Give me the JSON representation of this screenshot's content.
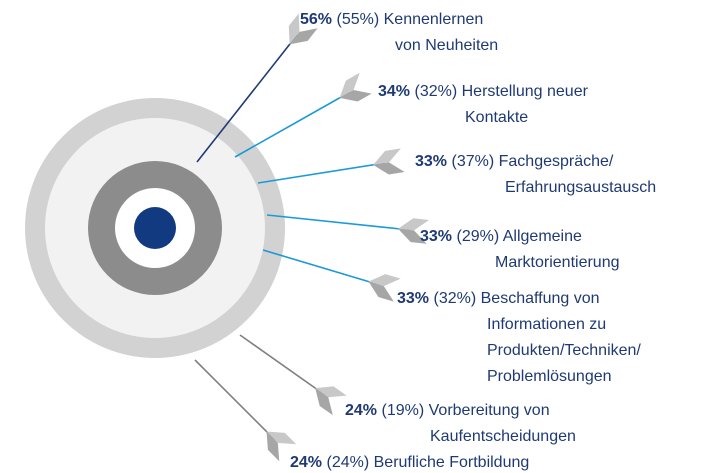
{
  "items": [
    {
      "current": "56%",
      "previous": "(55%)",
      "lines": [
        "Kennenlernen",
        "von Neuheiten"
      ]
    },
    {
      "current": "34%",
      "previous": "(32%)",
      "lines": [
        "Herstellung neuer",
        "Kontakte"
      ]
    },
    {
      "current": "33%",
      "previous": "(37%)",
      "lines": [
        "Fachgespräche/",
        "Erfahrungsaustausch"
      ]
    },
    {
      "current": "33%",
      "previous": "(29%)",
      "lines": [
        "Allgemeine",
        "Marktorientierung"
      ]
    },
    {
      "current": "33%",
      "previous": "(32%)",
      "lines": [
        "Beschaffung von",
        "Informationen zu",
        "Produkten/Techniken/",
        "Problemlösungen"
      ]
    },
    {
      "current": "24%",
      "previous": "(19%)",
      "lines": [
        "Vorbereitung von",
        "Kaufentscheidungen"
      ]
    },
    {
      "current": "24%",
      "previous": "(24%)",
      "lines": [
        "Berufliche Fortbildung"
      ]
    }
  ]
}
